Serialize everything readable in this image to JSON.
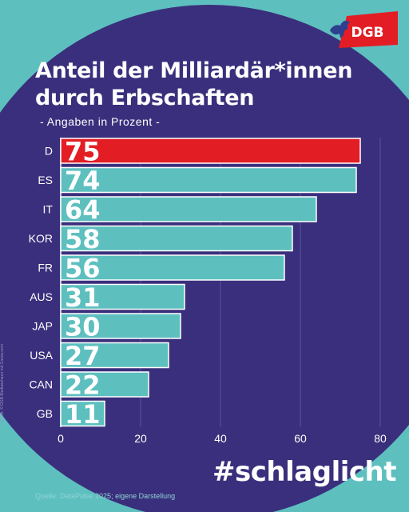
{
  "colors": {
    "background": "#5ebfbf",
    "circle": "#3a2f7c",
    "bar": "#5ebfbf",
    "highlight_bar": "#e31d24",
    "bar_outline": "#ffffff",
    "gridline": "#5a519a",
    "text": "#ffffff"
  },
  "logo": {
    "text": "DGB",
    "icon": "horse-icon"
  },
  "header": {
    "title_line1": "Anteil der Milliardär*innen",
    "title_line2": "durch Erbschaften",
    "subtitle": "- Angaben in Prozent -"
  },
  "chart_data": {
    "type": "bar",
    "orientation": "horizontal",
    "title": "Anteil der Milliardär*innen durch Erbschaften",
    "subtitle": "- Angaben in Prozent -",
    "categories": [
      "D",
      "ES",
      "IT",
      "KOR",
      "FR",
      "AUS",
      "JAP",
      "USA",
      "CAN",
      "GB"
    ],
    "values": [
      75,
      74,
      64,
      58,
      56,
      31,
      30,
      27,
      22,
      11
    ],
    "highlight": "D",
    "xlim": [
      0,
      80
    ],
    "xticks": [
      0,
      20,
      40,
      60,
      80
    ],
    "grid": true,
    "data_labels": true
  },
  "footer": {
    "hashtag": "#schlaglicht",
    "source": "Quelle: DataPulse 2025; eigene Darstellung",
    "credit": "Grafik: © DGB Mediaschaun mit Canva.com"
  }
}
